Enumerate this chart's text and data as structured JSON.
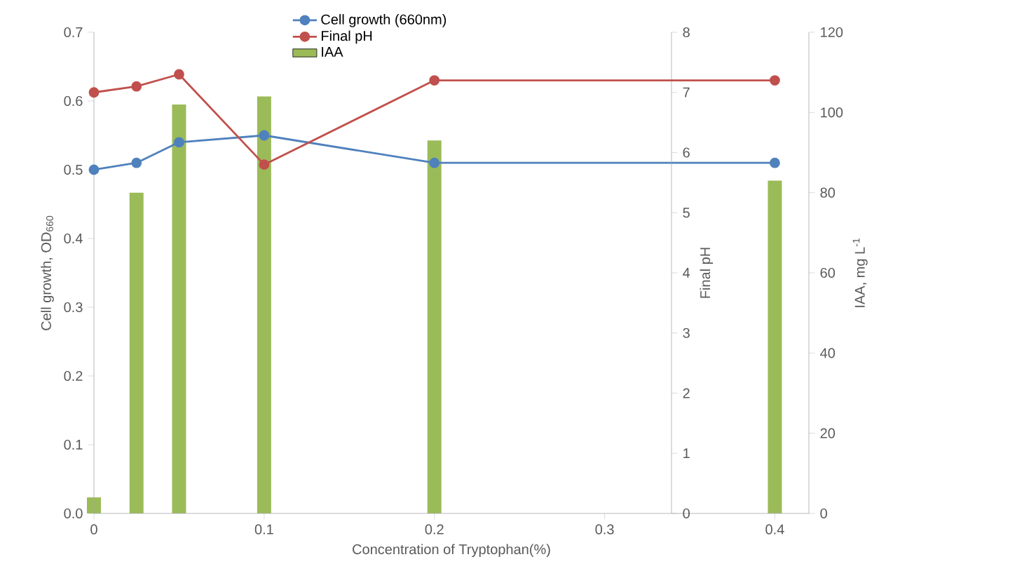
{
  "chart_data": {
    "type": "line",
    "xlabel": "Concentration of Tryptophan(%)",
    "ylabel": "Cell growth, OD$_{660}$",
    "y2label": "IAA, mg L$^{-1}$",
    "y3label": "Final pH",
    "x": [
      0,
      0.025,
      0.05,
      0.1,
      0.2,
      0.4
    ],
    "xlim": [
      0,
      0.42
    ],
    "xticks": [
      0,
      0.1,
      0.2,
      0.3,
      0.4
    ],
    "ylim": [
      0,
      0.7
    ],
    "yticks": [
      {
        "value": 0,
        "label": "0.0"
      },
      0.1,
      0.2,
      0.3,
      0.4,
      0.5,
      0.6,
      0.7
    ],
    "y2lim": [
      0,
      120
    ],
    "y2ticks": [
      0,
      20,
      40,
      60,
      80,
      100,
      120
    ],
    "y3lim": [
      0,
      8
    ],
    "y3ticks": [
      0,
      1,
      2,
      3,
      4,
      5,
      6,
      7,
      8
    ],
    "legend": "top",
    "marker": "circle",
    "series": [
      {
        "name": "Cell growth (660nm)",
        "color": "#4f81bd",
        "values": [
          0.5,
          0.51,
          0.54,
          0.55,
          0.51,
          0.51
        ]
      },
      {
        "name": "Final pH",
        "color": "#c0504d",
        "axis": "y3",
        "values": [
          7.0,
          7.1,
          7.3,
          5.8,
          7.2,
          7.2
        ]
      },
      {
        "name": "IAA",
        "type": "bar",
        "color": "#9bbb59",
        "axis": "y2",
        "values": [
          4,
          80,
          102,
          104,
          93,
          83
        ]
      }
    ]
  }
}
